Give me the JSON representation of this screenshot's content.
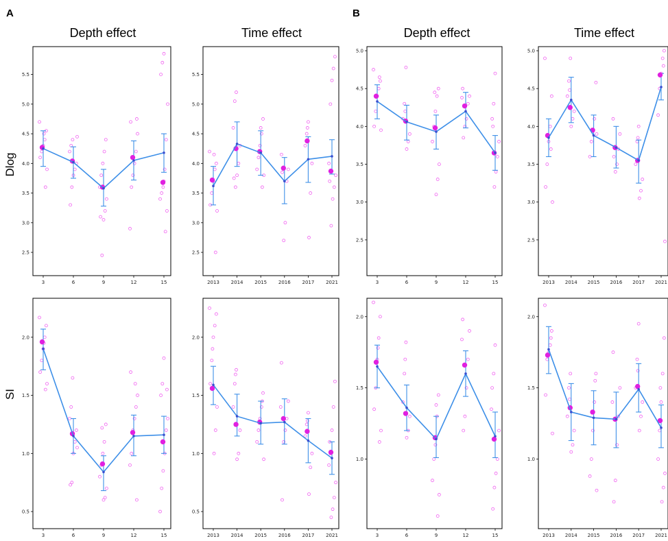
{
  "figure": {
    "panel_labels": [
      "A",
      "B"
    ],
    "column_titles": [
      "Depth effect",
      "Time effect",
      "Depth effect",
      "Time effect"
    ],
    "row_labels": [
      "Dlog",
      "SI"
    ]
  },
  "colors": {
    "mean_line": "#3d8fe8",
    "points": "#f060f0",
    "mean_point": "#e020e0",
    "frame": "#000000"
  },
  "chart_data": [
    {
      "id": "A-dlog-depth",
      "type": "line",
      "title": "Depth effect",
      "ylabel": "Dlog",
      "categories": [
        "3",
        "6",
        "9",
        "12",
        "15"
      ],
      "ylim": [
        2.2,
        5.9
      ],
      "yticks": [
        2.5,
        3.0,
        3.5,
        4.0,
        4.5,
        5.0,
        5.5
      ],
      "series": [
        {
          "values": [
            4.25,
            4.02,
            3.58,
            4.05,
            4.18
          ],
          "ci_low": [
            3.95,
            3.75,
            3.28,
            3.72,
            3.85
          ],
          "ci_high": [
            4.55,
            4.28,
            3.9,
            4.38,
            4.5
          ]
        }
      ],
      "highlight": [
        4.27,
        4.04,
        3.6,
        4.1,
        3.68
      ],
      "points": [
        [
          4.7,
          4.55,
          4.4,
          4.3,
          4.2,
          4.1,
          3.9,
          3.6,
          4.5,
          4.25
        ],
        [
          4.4,
          4.3,
          4.2,
          4.0,
          3.9,
          3.8,
          3.6,
          3.3,
          4.45
        ],
        [
          4.4,
          4.2,
          4.0,
          3.8,
          3.6,
          3.4,
          3.2,
          3.05,
          2.45,
          3.1
        ],
        [
          4.7,
          4.5,
          4.2,
          4.0,
          3.8,
          3.6,
          2.9,
          4.75
        ],
        [
          5.85,
          5.7,
          5.5,
          5.0,
          4.4,
          3.9,
          3.6,
          3.5,
          3.4,
          3.2,
          2.85,
          3.7
        ]
      ]
    },
    {
      "id": "A-dlog-time",
      "type": "line",
      "title": "Time effect",
      "ylabel": "",
      "categories": [
        "2013",
        "2014",
        "2015",
        "2016",
        "2017",
        "2021"
      ],
      "ylim": [
        2.2,
        5.9
      ],
      "yticks": [
        2.5,
        3.0,
        3.5,
        4.0,
        4.5,
        5.0,
        5.5
      ],
      "series": [
        {
          "values": [
            3.62,
            4.33,
            4.18,
            3.7,
            4.07,
            4.12
          ],
          "ci_low": [
            3.3,
            3.95,
            3.8,
            3.32,
            3.68,
            3.82
          ],
          "ci_high": [
            3.95,
            4.7,
            4.55,
            4.1,
            4.45,
            4.4
          ]
        }
      ],
      "highlight": [
        3.72,
        4.25,
        4.2,
        3.92,
        4.38,
        3.87
      ],
      "points": [
        [
          4.2,
          4.0,
          3.9,
          3.7,
          3.5,
          3.3,
          3.2,
          2.5,
          4.15
        ],
        [
          5.2,
          5.05,
          4.6,
          4.3,
          4.0,
          3.8,
          3.6,
          3.75
        ],
        [
          4.75,
          4.5,
          4.3,
          4.1,
          3.9,
          3.8,
          3.6,
          4.6
        ],
        [
          4.15,
          3.9,
          3.7,
          3.0,
          2.7,
          3.85
        ],
        [
          4.7,
          4.5,
          4.3,
          4.0,
          3.5,
          2.75,
          4.6
        ],
        [
          5.8,
          5.6,
          5.4,
          5.0,
          4.0,
          3.8,
          3.6,
          3.4,
          2.95,
          3.7
        ]
      ]
    },
    {
      "id": "B-dlog-depth",
      "type": "line",
      "title": "Depth effect",
      "ylabel": "",
      "categories": [
        "3",
        "6",
        "9",
        "12",
        "15"
      ],
      "ylim": [
        2.1,
        5.0
      ],
      "yticks": [
        2.5,
        3.0,
        3.5,
        4.0,
        4.5,
        5.0
      ],
      "series": [
        {
          "values": [
            4.33,
            4.06,
            3.93,
            4.2,
            3.65
          ],
          "ci_low": [
            4.1,
            3.82,
            3.7,
            3.98,
            3.42
          ],
          "ci_high": [
            4.55,
            4.28,
            4.15,
            4.45,
            3.88
          ]
        }
      ],
      "highlight": [
        4.4,
        4.07,
        3.98,
        4.27,
        3.65
      ],
      "points": [
        [
          4.75,
          4.6,
          4.5,
          4.4,
          4.2,
          4.0,
          3.95,
          4.65
        ],
        [
          4.78,
          4.3,
          4.1,
          3.9,
          3.8,
          3.7,
          4.2
        ],
        [
          4.5,
          4.4,
          4.2,
          4.0,
          3.8,
          3.5,
          3.3,
          3.1,
          4.45
        ],
        [
          4.5,
          4.4,
          4.3,
          4.1,
          4.0,
          3.85,
          4.38
        ],
        [
          4.7,
          4.3,
          4.1,
          3.8,
          3.6,
          3.4,
          3.2,
          4.0
        ]
      ]
    },
    {
      "id": "B-dlog-time",
      "type": "line",
      "title": "Time effect",
      "ylabel": "",
      "categories": [
        "2013",
        "2014",
        "2015",
        "2016",
        "2017",
        "2021"
      ],
      "ylim": [
        2.1,
        5.0
      ],
      "yticks": [
        2.5,
        3.0,
        3.5,
        4.0,
        4.5,
        5.0
      ],
      "series": [
        {
          "values": [
            3.85,
            4.35,
            3.88,
            3.72,
            3.55,
            4.52
          ],
          "ci_low": [
            3.6,
            4.05,
            3.6,
            3.45,
            3.25,
            4.35
          ],
          "ci_high": [
            4.1,
            4.65,
            4.15,
            4.0,
            3.82,
            4.7
          ]
        }
      ],
      "highlight": [
        3.88,
        4.25,
        3.95,
        3.72,
        3.55,
        4.68
      ],
      "points": [
        [
          4.9,
          4.4,
          4.0,
          3.8,
          3.5,
          3.2,
          3.0,
          3.7
        ],
        [
          4.9,
          4.6,
          4.4,
          4.2,
          4.1,
          4.0,
          4.48
        ],
        [
          4.58,
          4.1,
          3.95,
          3.8,
          3.6,
          3.9
        ],
        [
          4.1,
          3.9,
          3.7,
          3.5,
          3.4,
          3.6
        ],
        [
          4.0,
          3.8,
          3.5,
          3.3,
          3.15,
          3.05,
          3.85
        ],
        [
          5.0,
          4.9,
          4.7,
          4.5,
          4.15,
          2.48,
          4.8
        ]
      ]
    },
    {
      "id": "A-si-depth",
      "type": "line",
      "title": "",
      "ylabel": "SI",
      "categories": [
        "3",
        "6",
        "9",
        "12",
        "15"
      ],
      "ylim": [
        0.4,
        2.3
      ],
      "yticks": [
        0.5,
        1.0,
        1.5,
        2.0
      ],
      "series": [
        {
          "values": [
            1.9,
            1.15,
            0.84,
            1.15,
            1.16
          ],
          "ci_low": [
            1.72,
            1.0,
            0.68,
            0.98,
            1.0
          ],
          "ci_high": [
            2.07,
            1.3,
            0.98,
            1.33,
            1.32
          ]
        }
      ],
      "highlight": [
        1.96,
        1.17,
        0.91,
        1.18,
        1.1
      ],
      "points": [
        [
          2.17,
          2.1,
          2.0,
          1.9,
          1.8,
          1.7,
          1.6,
          1.55,
          1.95
        ],
        [
          1.65,
          1.4,
          1.3,
          1.2,
          1.1,
          1.0,
          0.75,
          0.73,
          1.05
        ],
        [
          1.25,
          1.1,
          1.0,
          0.9,
          0.8,
          0.7,
          0.62,
          0.6,
          1.22
        ],
        [
          1.7,
          1.5,
          1.4,
          1.3,
          1.2,
          1.0,
          0.9,
          0.6,
          1.6
        ],
        [
          1.82,
          1.6,
          1.5,
          1.3,
          1.2,
          1.0,
          0.85,
          0.7,
          0.5,
          1.55
        ]
      ]
    },
    {
      "id": "A-si-time",
      "type": "line",
      "title": "",
      "ylabel": "",
      "categories": [
        "2013",
        "2014",
        "2015",
        "2016",
        "2017",
        "2021"
      ],
      "ylim": [
        0.4,
        2.3
      ],
      "yticks": [
        0.5,
        1.0,
        1.5,
        2.0
      ],
      "series": [
        {
          "values": [
            1.59,
            1.32,
            1.26,
            1.27,
            1.11,
            0.96
          ],
          "ci_low": [
            1.42,
            1.15,
            1.08,
            1.08,
            0.92,
            0.82
          ],
          "ci_high": [
            1.75,
            1.51,
            1.45,
            1.47,
            1.3,
            1.1
          ]
        }
      ],
      "highlight": [
        1.56,
        1.25,
        1.27,
        1.3,
        1.19,
        1.01
      ],
      "points": [
        [
          2.25,
          2.2,
          2.1,
          2.0,
          1.8,
          1.6,
          1.4,
          1.2,
          1.0,
          1.9
        ],
        [
          1.72,
          1.6,
          1.4,
          1.2,
          1.0,
          0.95,
          1.68
        ],
        [
          1.52,
          1.4,
          1.3,
          1.2,
          1.1,
          0.95,
          1.45
        ],
        [
          1.78,
          1.45,
          1.3,
          1.2,
          1.1,
          0.6,
          1.4
        ],
        [
          1.35,
          1.25,
          1.15,
          1.0,
          0.88,
          0.65,
          1.28
        ],
        [
          1.62,
          1.4,
          1.2,
          1.0,
          0.9,
          0.75,
          0.62,
          0.52,
          0.45,
          1.1
        ]
      ]
    },
    {
      "id": "B-si-depth",
      "type": "line",
      "title": "",
      "ylabel": "",
      "categories": [
        "3",
        "6",
        "9",
        "12",
        "15"
      ],
      "ylim": [
        0.55,
        2.1
      ],
      "yticks": [
        1.0,
        1.5,
        2.0
      ],
      "series": [
        {
          "values": [
            1.65,
            1.36,
            1.14,
            1.6,
            1.16
          ],
          "ci_low": [
            1.5,
            1.2,
            1.01,
            1.44,
            1.01
          ],
          "ci_high": [
            1.8,
            1.52,
            1.3,
            1.76,
            1.33
          ]
        }
      ],
      "highlight": [
        1.68,
        1.32,
        1.15,
        1.66,
        1.14
      ],
      "points": [
        [
          2.1,
          2.0,
          1.85,
          1.7,
          1.5,
          1.35,
          1.2,
          1.12,
          1.78
        ],
        [
          1.82,
          1.6,
          1.4,
          1.3,
          1.2,
          1.15,
          1.7
        ],
        [
          1.45,
          1.3,
          1.1,
          1.0,
          0.85,
          0.75,
          0.6,
          1.38
        ],
        [
          1.98,
          1.9,
          1.7,
          1.5,
          1.3,
          1.2,
          1.84
        ],
        [
          1.8,
          1.6,
          1.5,
          1.2,
          1.0,
          0.9,
          0.8,
          0.65,
          1.35
        ]
      ]
    },
    {
      "id": "B-si-time",
      "type": "line",
      "title": "",
      "ylabel": "",
      "categories": [
        "2013",
        "2014",
        "2015",
        "2016",
        "2017",
        "2021"
      ],
      "ylim": [
        0.55,
        2.1
      ],
      "yticks": [
        1.0,
        1.5,
        2.0
      ],
      "series": [
        {
          "values": [
            1.77,
            1.33,
            1.29,
            1.28,
            1.49,
            1.22
          ],
          "ci_low": [
            1.6,
            1.13,
            1.1,
            1.08,
            1.33,
            1.08
          ],
          "ci_high": [
            1.93,
            1.53,
            1.48,
            1.47,
            1.67,
            1.38
          ]
        }
      ],
      "highlight": [
        1.73,
        1.36,
        1.33,
        1.28,
        1.51,
        1.27
      ],
      "points": [
        [
          2.08,
          1.9,
          1.8,
          1.75,
          1.7,
          1.45,
          1.18,
          1.85
        ],
        [
          1.6,
          1.5,
          1.3,
          1.2,
          1.1,
          1.05,
          1.42
        ],
        [
          1.6,
          1.4,
          1.2,
          1.0,
          0.88,
          0.78,
          1.55
        ],
        [
          1.75,
          1.5,
          1.3,
          1.1,
          0.85,
          0.7,
          1.4
        ],
        [
          1.95,
          1.7,
          1.5,
          1.4,
          1.3,
          1.2,
          1.62
        ],
        [
          1.85,
          1.6,
          1.4,
          1.2,
          1.0,
          0.9,
          0.8,
          0.7,
          1.5
        ]
      ]
    }
  ]
}
